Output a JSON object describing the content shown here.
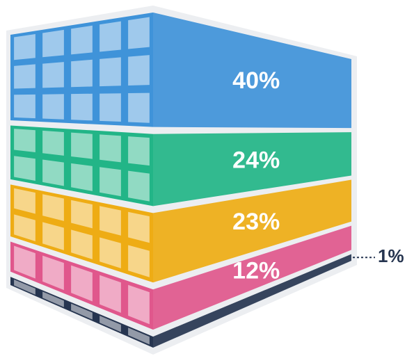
{
  "chart_data": {
    "type": "stacked-block",
    "values": [
      40,
      24,
      23,
      12,
      1
    ],
    "value_labels": [
      "40%",
      "24%",
      "23%",
      "12%",
      "1%"
    ],
    "colors": [
      "#3f93d9",
      "#22b587",
      "#eeac14",
      "#e0578c",
      "#263550"
    ]
  }
}
